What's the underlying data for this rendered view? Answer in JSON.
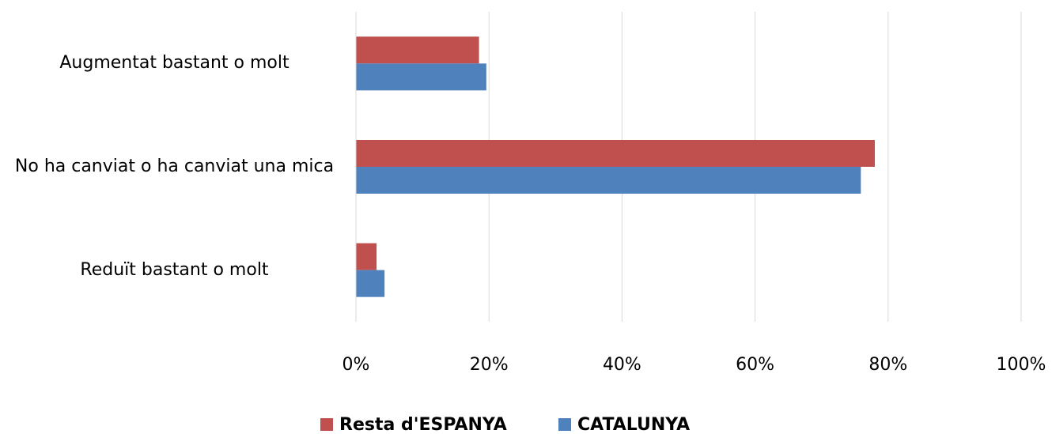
{
  "chart_data": {
    "type": "bar",
    "orientation": "horizontal",
    "categories": [
      "Augmentat bastant o molt",
      "No ha canviat o ha canviat una mica",
      "Reduït bastant o molt"
    ],
    "series": [
      {
        "name": "Resta d'ESPANYA",
        "color": "#c0504d",
        "values": [
          18.5,
          78.0,
          3.1
        ]
      },
      {
        "name": "CATALUNYA",
        "color": "#4f81bd",
        "values": [
          19.6,
          75.9,
          4.3
        ]
      }
    ],
    "xlim": [
      0,
      100
    ],
    "xticks": [
      {
        "value": 0,
        "label": "0%"
      },
      {
        "value": 20,
        "label": "20%"
      },
      {
        "value": 40,
        "label": "40%"
      },
      {
        "value": 60,
        "label": "60%"
      },
      {
        "value": 80,
        "label": "80%"
      },
      {
        "value": 100,
        "label": "100%"
      }
    ],
    "grid": true,
    "legend": "bottom"
  }
}
